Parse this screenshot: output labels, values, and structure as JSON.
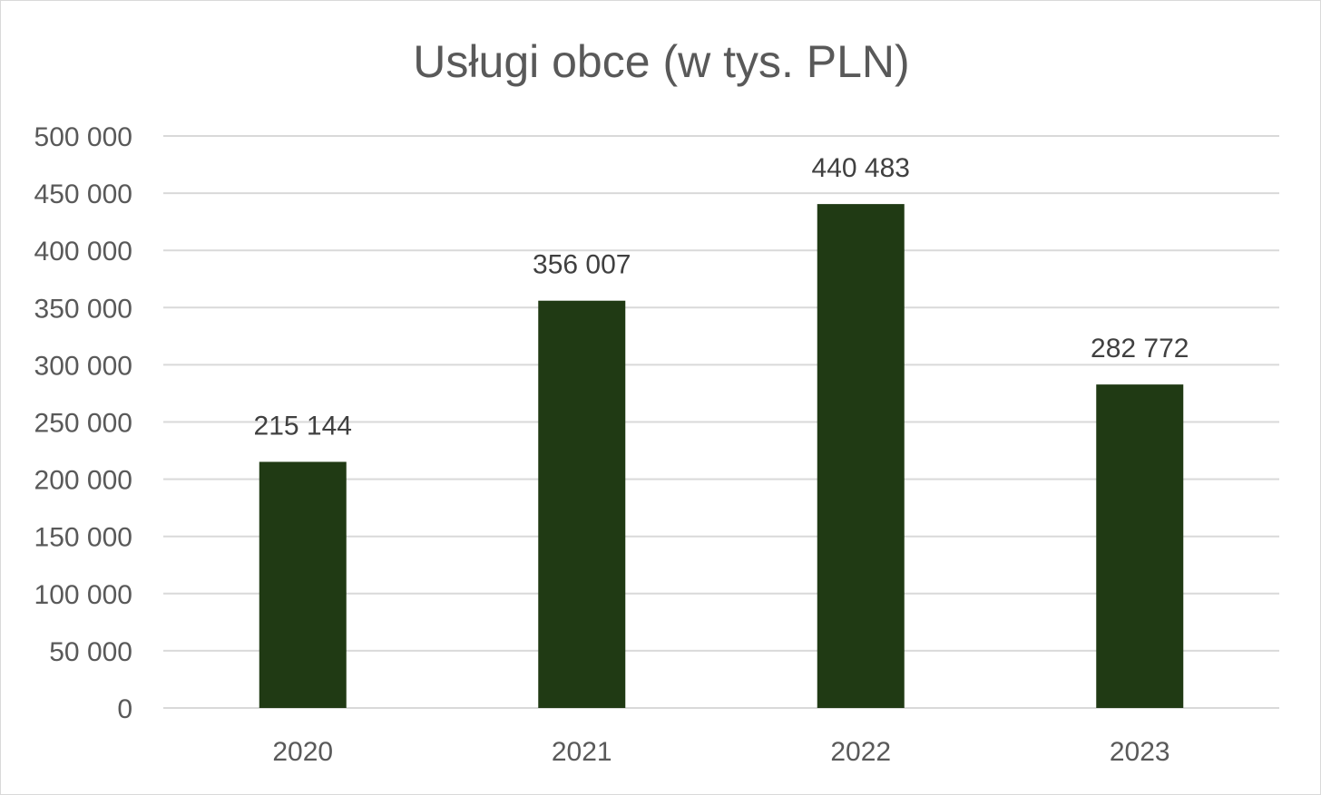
{
  "chart_data": {
    "type": "bar",
    "title": "Usługi obce (w tys. PLN)",
    "categories": [
      "2020",
      "2021",
      "2022",
      "2023"
    ],
    "values": [
      215144,
      356007,
      440483,
      282772
    ],
    "data_labels": [
      "215 144",
      "356 007",
      "440 483",
      "282 772"
    ],
    "yticks": [
      0,
      50000,
      100000,
      150000,
      200000,
      250000,
      300000,
      350000,
      400000,
      450000,
      500000
    ],
    "ytick_labels": [
      "0",
      "50 000",
      "100 000",
      "150 000",
      "200 000",
      "250 000",
      "300 000",
      "350 000",
      "400 000",
      "450 000",
      "500 000"
    ],
    "ylim": [
      0,
      500000
    ],
    "xlabel": "",
    "ylabel": "",
    "grid": true,
    "legend": "none",
    "bar_color": "#203a14",
    "grid_color": "#d9d9d9"
  }
}
